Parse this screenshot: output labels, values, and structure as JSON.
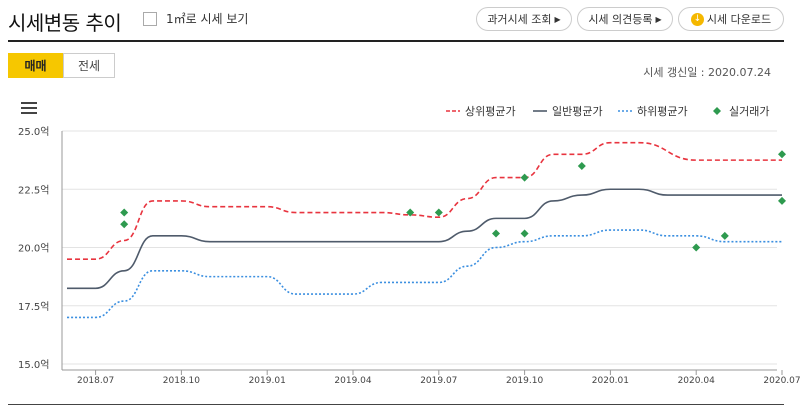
{
  "header": {
    "title": "시세변동 추이",
    "sqm_checkbox_label": "1㎡로 시세 보기",
    "buttons": {
      "past": "과거시세 조회",
      "opinion": "시세 의견등록",
      "download": "시세 다운로드"
    }
  },
  "tabs": [
    {
      "label": "매매",
      "active": true
    },
    {
      "label": "전세",
      "active": false
    }
  ],
  "update_text": "시세 갱신일 : 2020.07.24",
  "colors": {
    "upper": "#e8343f",
    "general": "#4f5b6b",
    "lower": "#3b8fe0",
    "actual": "#2e9a4f",
    "accent": "#f6c700"
  },
  "chart_data": {
    "type": "line",
    "y_axis": {
      "min": 15.0,
      "max": 25.0,
      "ticks": [
        "25.0억",
        "22.5억",
        "20.0억",
        "17.5억",
        "15.0억"
      ],
      "tick_values": [
        25.0,
        22.5,
        20.0,
        17.5,
        15.0
      ]
    },
    "x_axis": {
      "ticks": [
        "2018.07",
        "2018.10",
        "2019.01",
        "2019.04",
        "2019.07",
        "2019.10",
        "2020.01",
        "2020.04",
        "2020.07"
      ]
    },
    "legend": {
      "position": "top-right",
      "items": [
        "상위평균가",
        "일반평균가",
        "하위평균가",
        "실거래가"
      ]
    },
    "series": [
      {
        "name": "상위평균가",
        "points": [
          [
            "2018.06",
            19.5
          ],
          [
            "2018.07",
            19.5
          ],
          [
            "2018.08",
            20.3
          ],
          [
            "2018.09",
            22.0
          ],
          [
            "2018.10",
            22.0
          ],
          [
            "2018.11",
            21.75
          ],
          [
            "2019.01",
            21.75
          ],
          [
            "2019.02",
            21.5
          ],
          [
            "2019.05",
            21.5
          ],
          [
            "2019.06",
            21.4
          ],
          [
            "2019.07",
            21.3
          ],
          [
            "2019.08",
            22.1
          ],
          [
            "2019.09",
            23.0
          ],
          [
            "2019.10",
            23.0
          ],
          [
            "2019.11",
            24.0
          ],
          [
            "2019.12",
            24.0
          ],
          [
            "2020.01",
            24.5
          ],
          [
            "2020.02",
            24.5
          ],
          [
            "2020.04",
            23.75
          ],
          [
            "2020.07",
            23.75
          ]
        ]
      },
      {
        "name": "일반평균가",
        "points": [
          [
            "2018.06",
            18.25
          ],
          [
            "2018.07",
            18.25
          ],
          [
            "2018.08",
            19.0
          ],
          [
            "2018.09",
            20.5
          ],
          [
            "2018.10",
            20.5
          ],
          [
            "2018.11",
            20.25
          ],
          [
            "2019.07",
            20.25
          ],
          [
            "2019.08",
            20.7
          ],
          [
            "2019.09",
            21.25
          ],
          [
            "2019.10",
            21.25
          ],
          [
            "2019.11",
            22.0
          ],
          [
            "2019.12",
            22.25
          ],
          [
            "2020.01",
            22.5
          ],
          [
            "2020.02",
            22.5
          ],
          [
            "2020.03",
            22.25
          ],
          [
            "2020.07",
            22.25
          ]
        ]
      },
      {
        "name": "하위평균가",
        "points": [
          [
            "2018.06",
            17.0
          ],
          [
            "2018.07",
            17.0
          ],
          [
            "2018.08",
            17.7
          ],
          [
            "2018.09",
            19.0
          ],
          [
            "2018.10",
            19.0
          ],
          [
            "2018.11",
            18.75
          ],
          [
            "2019.01",
            18.75
          ],
          [
            "2019.02",
            18.0
          ],
          [
            "2019.04",
            18.0
          ],
          [
            "2019.05",
            18.5
          ],
          [
            "2019.07",
            18.5
          ],
          [
            "2019.08",
            19.2
          ],
          [
            "2019.09",
            20.0
          ],
          [
            "2019.10",
            20.25
          ],
          [
            "2019.11",
            20.5
          ],
          [
            "2019.12",
            20.5
          ],
          [
            "2020.01",
            20.75
          ],
          [
            "2020.02",
            20.75
          ],
          [
            "2020.03",
            20.5
          ],
          [
            "2020.04",
            20.5
          ],
          [
            "2020.05",
            20.25
          ],
          [
            "2020.07",
            20.25
          ]
        ]
      }
    ],
    "actual_trades": [
      [
        "2018.08",
        21.5
      ],
      [
        "2018.08",
        21.0
      ],
      [
        "2019.06",
        21.5
      ],
      [
        "2019.07",
        21.5
      ],
      [
        "2019.09",
        20.6
      ],
      [
        "2019.10",
        20.6
      ],
      [
        "2019.10",
        23.0
      ],
      [
        "2019.12",
        23.5
      ],
      [
        "2020.04",
        20.0
      ],
      [
        "2020.05",
        20.5
      ],
      [
        "2020.07",
        22.0
      ],
      [
        "2020.07",
        24.0
      ]
    ]
  }
}
